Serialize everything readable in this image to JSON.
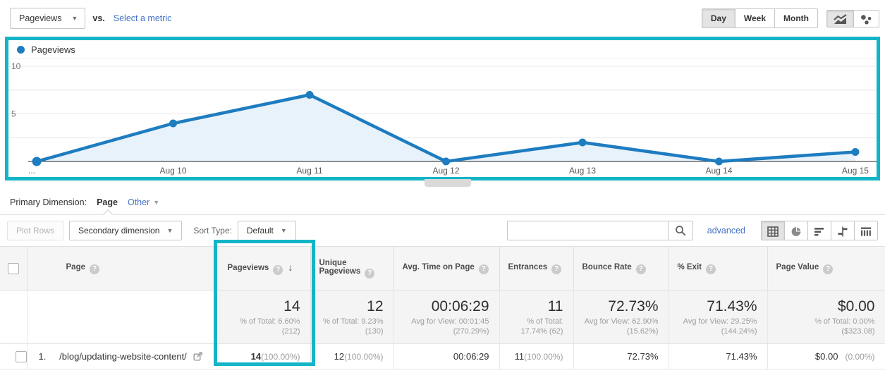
{
  "colors": {
    "accent": "#13b5c6",
    "chart_line": "#1e7cc0",
    "chart_fill": "#e8f2fa",
    "link": "#4272c4"
  },
  "topbar": {
    "metric_selector": "Pageviews",
    "vs_label": "vs.",
    "select_metric_label": "Select a metric",
    "granularity": [
      "Day",
      "Week",
      "Month"
    ],
    "active_granularity": "Day"
  },
  "chart_data": {
    "type": "area",
    "series": [
      {
        "name": "Pageviews",
        "values": [
          0,
          4,
          7,
          0,
          2,
          0,
          1
        ]
      }
    ],
    "x": [
      "...",
      "Aug 10",
      "Aug 11",
      "Aug 12",
      "Aug 13",
      "Aug 14",
      "Aug 15"
    ],
    "ylim": [
      0,
      10
    ],
    "yticks": [
      5,
      10
    ],
    "grid": true,
    "legend": [
      "Pageviews"
    ],
    "legend_position": "top-left"
  },
  "dimension_bar": {
    "label": "Primary Dimension:",
    "selected": "Page",
    "other_label": "Other"
  },
  "table_toolbar": {
    "plot_rows_label": "Plot Rows",
    "secondary_dimension_label": "Secondary dimension",
    "sort_type_label": "Sort Type:",
    "sort_type_value": "Default",
    "search_placeholder": "",
    "advanced_label": "advanced"
  },
  "table": {
    "columns": [
      {
        "label": "Page"
      },
      {
        "label": "Pageviews",
        "sorted": "desc"
      },
      {
        "label": "Unique Pageviews"
      },
      {
        "label": "Avg. Time on Page"
      },
      {
        "label": "Entrances"
      },
      {
        "label": "Bounce Rate"
      },
      {
        "label": "% Exit"
      },
      {
        "label": "Page Value"
      }
    ],
    "summary": {
      "pageviews": {
        "value": "14",
        "line1": "% of Total: 6.60%",
        "line2": "(212)"
      },
      "unique_pageviews": {
        "value": "12",
        "line1": "% of Total: 9.23%",
        "line2": "(130)"
      },
      "avg_time_on_page": {
        "value": "00:06:29",
        "line1": "Avg for View: 00:01:45",
        "line2": "(270.29%)"
      },
      "entrances": {
        "value": "11",
        "line1": "% of Total:",
        "line2": "17.74% (62)"
      },
      "bounce_rate": {
        "value": "72.73%",
        "line1": "Avg for View: 62.90%",
        "line2": "(15.62%)"
      },
      "percent_exit": {
        "value": "71.43%",
        "line1": "Avg for View: 29.25%",
        "line2": "(144.24%)"
      },
      "page_value": {
        "value": "$0.00",
        "line1": "% of Total: 0.00%",
        "line2": "($323.08)"
      }
    },
    "rows": [
      {
        "index": "1.",
        "page": "/blog/updating-website-content/",
        "pageviews": "14",
        "pageviews_pct": "(100.00%)",
        "unique_pageviews": "12",
        "unique_pageviews_pct": "(100.00%)",
        "avg_time_on_page": "00:06:29",
        "entrances": "11",
        "entrances_pct": "(100.00%)",
        "bounce_rate": "72.73%",
        "percent_exit": "71.43%",
        "page_value": "$0.00",
        "page_value_pct": "(0.00%)"
      }
    ]
  }
}
